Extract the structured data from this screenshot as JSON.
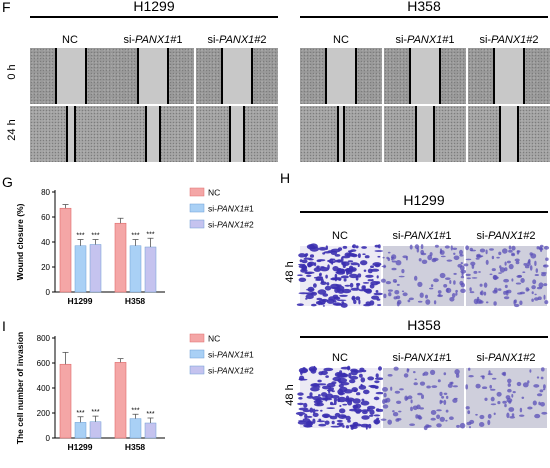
{
  "panelF": {
    "letter": "F",
    "groups": [
      {
        "name": "H1299",
        "columns": [
          "NC",
          "si-PANX1#1",
          "si-PANX1#2"
        ]
      },
      {
        "name": "H358",
        "columns": [
          "NC",
          "si-PANX1#1",
          "si-PANX1#2"
        ]
      }
    ],
    "rows": [
      "0 h",
      "24 h"
    ]
  },
  "panelH": {
    "letter": "H",
    "groups": [
      {
        "name": "H1299",
        "columns": [
          "NC",
          "si-PANX1#1",
          "si-PANX1#2"
        ],
        "row": "48 h"
      },
      {
        "name": "H358",
        "columns": [
          "NC",
          "si-PANX1#1",
          "si-PANX1#2"
        ],
        "row": "48 h"
      }
    ]
  },
  "chart_data": [
    {
      "panel": "G",
      "type": "bar",
      "ylabel": "Wound closure (%)",
      "ylim": [
        0,
        80
      ],
      "yticks": [
        0,
        20,
        40,
        60,
        80
      ],
      "categories": [
        "H1299",
        "H358"
      ],
      "legend": [
        "NC",
        "si-PANX1#1",
        "si-PANX1#2"
      ],
      "legend_position": "right",
      "series": [
        {
          "name": "NC",
          "color": "#f4a6a6",
          "values": [
            67,
            55
          ],
          "errors": [
            3,
            4
          ],
          "sig": [
            "",
            ""
          ]
        },
        {
          "name": "si-PANX1#1",
          "color": "#a9d0f5",
          "values": [
            37,
            37
          ],
          "errors": [
            5,
            5
          ],
          "sig": [
            "***",
            "***"
          ]
        },
        {
          "name": "si-PANX1#2",
          "color": "#c5c3ef",
          "values": [
            38,
            36
          ],
          "errors": [
            4,
            7
          ],
          "sig": [
            "***",
            "***"
          ]
        }
      ]
    },
    {
      "panel": "I",
      "type": "bar",
      "ylabel": "The cell number of invasion",
      "ylim": [
        0,
        800
      ],
      "yticks": [
        0,
        200,
        400,
        600,
        800
      ],
      "categories": [
        "H1299",
        "H358"
      ],
      "legend": [
        "NC",
        "si-PANX1#1",
        "si-PANX1#2"
      ],
      "legend_position": "right",
      "series": [
        {
          "name": "NC",
          "color": "#f4a6a6",
          "values": [
            590,
            605
          ],
          "errors": [
            95,
            30
          ],
          "sig": [
            "",
            ""
          ]
        },
        {
          "name": "si-PANX1#1",
          "color": "#a9d0f5",
          "values": [
            125,
            155
          ],
          "errors": [
            45,
            35
          ],
          "sig": [
            "***",
            "***"
          ]
        },
        {
          "name": "si-PANX1#2",
          "color": "#c5c3ef",
          "values": [
            130,
            120
          ],
          "errors": [
            45,
            40
          ],
          "sig": [
            "***",
            "***"
          ]
        }
      ]
    }
  ]
}
